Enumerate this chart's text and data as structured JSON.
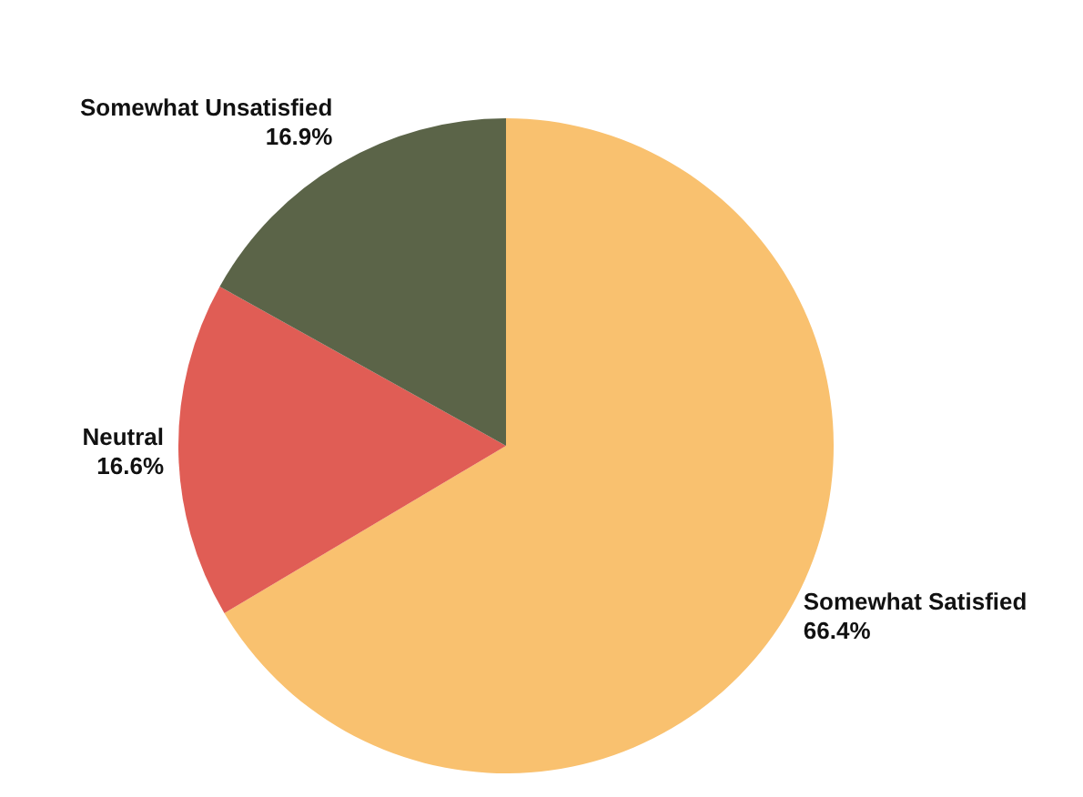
{
  "chart_data": {
    "type": "pie",
    "categories": [
      "Somewhat Satisfied",
      "Neutral",
      "Somewhat Unsatisfied"
    ],
    "values": [
      66.4,
      16.6,
      16.9
    ],
    "value_labels": [
      "66.4%",
      "16.6%",
      "16.9%"
    ],
    "colors": [
      "#f9c16f",
      "#e05d55",
      "#5b6448"
    ],
    "legend": false
  }
}
